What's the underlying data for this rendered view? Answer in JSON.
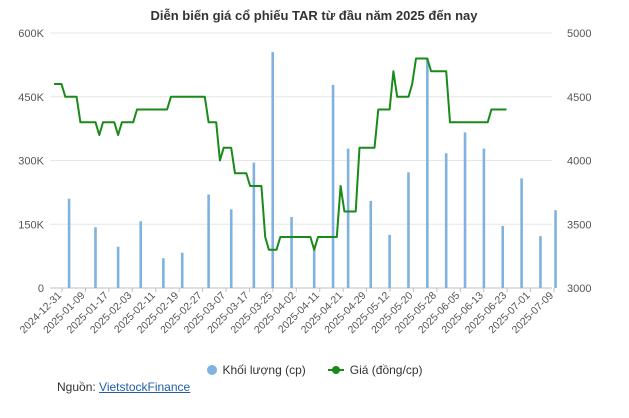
{
  "chart_data": {
    "type": "bar+line",
    "title": "Diễn biến giá cổ phiếu TAR từ đầu năm 2025 đến nay",
    "y_left": {
      "ticks": [
        "0",
        "150K",
        "300K",
        "450K",
        "600K"
      ],
      "range": [
        0,
        600000
      ]
    },
    "y_right": {
      "ticks": [
        "3000",
        "3500",
        "4000",
        "4500",
        "5000"
      ],
      "range": [
        3000,
        5000
      ]
    },
    "x_tick_labels": [
      "2024-12-31",
      "2025-01-09",
      "2025-01-17",
      "2025-02-03",
      "2025-02-11",
      "2025-02-19",
      "2025-02-27",
      "2025-03-07",
      "2025-03-17",
      "2025-03-25",
      "2025-04-02",
      "2025-04-11",
      "2025-04-21",
      "2025-04-29",
      "2025-05-12",
      "2025-05-20",
      "2025-05-28",
      "2025-06-05",
      "2025-06-13",
      "2025-06-23",
      "2025-07-01",
      "2025-07-09"
    ],
    "n_sessions": 131,
    "volume_bars": [
      {
        "session": 4,
        "value": 210000
      },
      {
        "session": 11,
        "value": 143000
      },
      {
        "session": 17,
        "value": 97000
      },
      {
        "session": 23,
        "value": 157000
      },
      {
        "session": 29,
        "value": 70000
      },
      {
        "session": 34,
        "value": 83000
      },
      {
        "session": 41,
        "value": 220000
      },
      {
        "session": 47,
        "value": 185000
      },
      {
        "session": 53,
        "value": 295000
      },
      {
        "session": 58,
        "value": 555000
      },
      {
        "session": 63,
        "value": 167000
      },
      {
        "session": 69,
        "value": 100000
      },
      {
        "session": 74,
        "value": 478000
      },
      {
        "session": 78,
        "value": 328000
      },
      {
        "session": 84,
        "value": 205000
      },
      {
        "session": 89,
        "value": 125000
      },
      {
        "session": 94,
        "value": 272000
      },
      {
        "session": 99,
        "value": 540000
      },
      {
        "session": 104,
        "value": 317000
      },
      {
        "session": 109,
        "value": 366000
      },
      {
        "session": 114,
        "value": 328000
      },
      {
        "session": 119,
        "value": 146000
      },
      {
        "session": 124,
        "value": 258000
      },
      {
        "session": 129,
        "value": 122000
      },
      {
        "session": 133,
        "value": 183000
      }
    ],
    "price_line": [
      [
        0,
        4600
      ],
      [
        2,
        4600
      ],
      [
        3,
        4500
      ],
      [
        6,
        4500
      ],
      [
        7,
        4300
      ],
      [
        11,
        4300
      ],
      [
        12,
        4200
      ],
      [
        13,
        4300
      ],
      [
        16,
        4300
      ],
      [
        17,
        4200
      ],
      [
        18,
        4300
      ],
      [
        21,
        4300
      ],
      [
        22,
        4400
      ],
      [
        30,
        4400
      ],
      [
        31,
        4500
      ],
      [
        40,
        4500
      ],
      [
        41,
        4300
      ],
      [
        43,
        4300
      ],
      [
        44,
        4000
      ],
      [
        45,
        4100
      ],
      [
        47,
        4100
      ],
      [
        48,
        3900
      ],
      [
        51,
        3900
      ],
      [
        52,
        3800
      ],
      [
        55,
        3800
      ],
      [
        56,
        3400
      ],
      [
        57,
        3300
      ],
      [
        59,
        3300
      ],
      [
        60,
        3400
      ],
      [
        68,
        3400
      ],
      [
        69,
        3300
      ],
      [
        70,
        3400
      ],
      [
        75,
        3400
      ],
      [
        76,
        3800
      ],
      [
        77,
        3600
      ],
      [
        80,
        3600
      ],
      [
        81,
        4100
      ],
      [
        85,
        4100
      ],
      [
        86,
        4400
      ],
      [
        89,
        4400
      ],
      [
        90,
        4700
      ],
      [
        91,
        4500
      ],
      [
        94,
        4500
      ],
      [
        95,
        4600
      ],
      [
        96,
        4800
      ],
      [
        99,
        4800
      ],
      [
        100,
        4700
      ],
      [
        104,
        4700
      ],
      [
        105,
        4300
      ],
      [
        115,
        4300
      ],
      [
        116,
        4400
      ],
      [
        120,
        4400
      ]
    ],
    "legend": [
      {
        "name": "Khối lượng (cp)",
        "color": "#7fb2de"
      },
      {
        "name": "Giá (đồng/cp)",
        "color": "#1a8a1a"
      }
    ]
  },
  "source": {
    "label": "Nguồn:",
    "link_text": "VietstockFinance"
  }
}
